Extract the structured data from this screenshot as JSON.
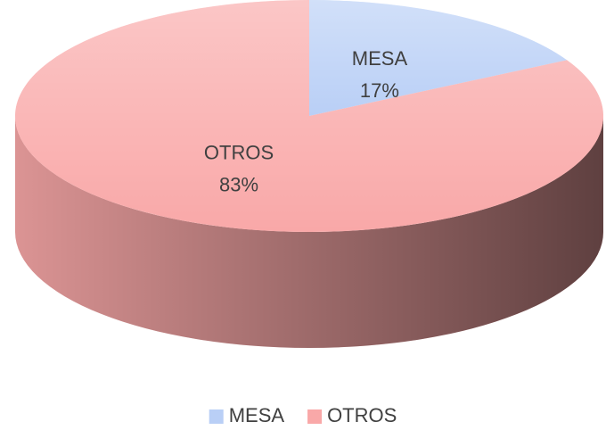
{
  "chart_data": {
    "type": "pie",
    "categories": [
      "MESA",
      "OTROS"
    ],
    "values": [
      17,
      83
    ],
    "value_labels": [
      "17%",
      "83%"
    ],
    "colors": [
      "#b9cff6",
      "#f9a8a8"
    ],
    "legend": "bottom"
  }
}
